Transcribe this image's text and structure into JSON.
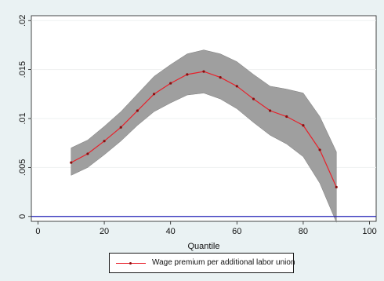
{
  "chart_data": {
    "type": "line",
    "xlabel": "Quantile",
    "ylabel": "",
    "xlim": [
      -2,
      102
    ],
    "ylim": [
      -0.0005,
      0.0205
    ],
    "x_ticks": [
      0,
      20,
      40,
      60,
      80,
      100
    ],
    "x_tick_labels": [
      "0",
      "20",
      "40",
      "60",
      "80",
      "100"
    ],
    "y_ticks": [
      0,
      0.005,
      0.01,
      0.015,
      0.02
    ],
    "y_tick_labels": [
      "0",
      ".005",
      ".01",
      ".015",
      ".02"
    ],
    "grid": "horizontal",
    "reference_line": {
      "y": 0,
      "color": "#1f1fb4"
    },
    "series": [
      {
        "name": "Wage premium per additional labor union",
        "color": "#e8202a",
        "marker_color": "#8b0d0d",
        "x": [
          10,
          15,
          20,
          25,
          30,
          35,
          40,
          45,
          50,
          55,
          60,
          65,
          70,
          75,
          80,
          85,
          90
        ],
        "y": [
          0.0055,
          0.0064,
          0.0077,
          0.0091,
          0.0108,
          0.0125,
          0.0136,
          0.0145,
          0.0148,
          0.0142,
          0.0133,
          0.012,
          0.0108,
          0.0102,
          0.0093,
          0.0068,
          0.003
        ],
        "upper": [
          0.007,
          0.0078,
          0.0092,
          0.0107,
          0.0125,
          0.0143,
          0.0155,
          0.0166,
          0.017,
          0.0166,
          0.0158,
          0.0145,
          0.0133,
          0.013,
          0.0126,
          0.0102,
          0.0066
        ],
        "lower": [
          0.0042,
          0.005,
          0.0063,
          0.0077,
          0.0093,
          0.0107,
          0.0116,
          0.0124,
          0.0126,
          0.012,
          0.011,
          0.0096,
          0.0083,
          0.0074,
          0.0061,
          0.0034,
          -0.0006
        ]
      }
    ],
    "ci_band_color": "#9a9a9a",
    "legend": {
      "position": "bottom",
      "entries": [
        "Wage premium per additional labor union"
      ]
    }
  }
}
